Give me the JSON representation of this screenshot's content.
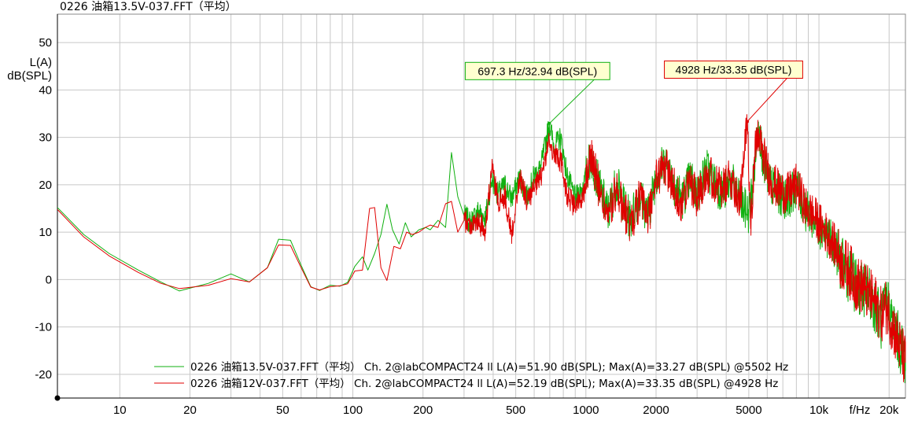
{
  "title": "0226 油箱13.5V-037.FFT（平均）",
  "colors": {
    "background": "#ffffff",
    "grid": "#c8c8c8",
    "axis": "#000000",
    "green": "#10b010",
    "red": "#e00000",
    "green_annot_bg": "#ffffd0",
    "red_annot_bg": "#ffffd0"
  },
  "chart_data": {
    "type": "line",
    "title": "0226 油箱13.5V-037.FFT（平均）",
    "xlabel": "f/Hz",
    "ylabel": [
      "L(A)",
      "dB(SPL)"
    ],
    "xscale": "log",
    "xlim": [
      5.4,
      23500
    ],
    "ylim": [
      -25,
      56
    ],
    "x_ticks": [
      {
        "value": 10,
        "label": "10"
      },
      {
        "value": 20,
        "label": "20"
      },
      {
        "value": 50,
        "label": "50"
      },
      {
        "value": 100,
        "label": "100"
      },
      {
        "value": 200,
        "label": "200"
      },
      {
        "value": 500,
        "label": "500"
      },
      {
        "value": 1000,
        "label": "1000"
      },
      {
        "value": 2000,
        "label": "2000"
      },
      {
        "value": 5000,
        "label": "5000"
      },
      {
        "value": 10000,
        "label": "10k"
      },
      {
        "value": 20000,
        "label": "20k"
      }
    ],
    "y_ticks": [
      {
        "value": 50,
        "label": "50"
      },
      {
        "value": 40,
        "label": "40"
      },
      {
        "value": 30,
        "label": "30"
      },
      {
        "value": 20,
        "label": "20"
      },
      {
        "value": 10,
        "label": "10"
      },
      {
        "value": 0,
        "label": "0"
      },
      {
        "value": -10,
        "label": "-10"
      },
      {
        "value": -20,
        "label": "-20"
      }
    ],
    "x_minor_ticks": [
      30,
      40,
      60,
      70,
      80,
      90,
      300,
      400,
      600,
      700,
      800,
      900,
      3000,
      4000,
      6000,
      7000,
      8000,
      9000
    ],
    "grid": true,
    "legend_position": "bottom-right",
    "series": [
      {
        "name": "0226 油箱13.5V-037.FFT（平均） Ch. 2@labCOMPACT24 ll L(A)=51.90 dB(SPL); Max(A)=33.27 dB(SPL) @5502 Hz",
        "color": "#10b010",
        "points": [
          [
            5.4,
            15.2
          ],
          [
            7.0,
            9.5
          ],
          [
            9.0,
            5.5
          ],
          [
            12,
            2.0
          ],
          [
            15,
            -0.5
          ],
          [
            18,
            -2.4
          ],
          [
            24,
            -0.8
          ],
          [
            30,
            1.2
          ],
          [
            36,
            -0.5
          ],
          [
            43,
            2.5
          ],
          [
            48,
            8.5
          ],
          [
            54,
            8.3
          ],
          [
            60,
            3.0
          ],
          [
            66,
            -1.5
          ],
          [
            72,
            -2.3
          ],
          [
            80,
            -1.2
          ],
          [
            88,
            -1.4
          ],
          [
            95,
            -0.6
          ],
          [
            102,
            2.8
          ],
          [
            110,
            4.8
          ],
          [
            116,
            2.0
          ],
          [
            124,
            5.5
          ],
          [
            132,
            9.5
          ],
          [
            140,
            15.9
          ],
          [
            148,
            10.5
          ],
          [
            158,
            7.5
          ],
          [
            168,
            12.0
          ],
          [
            178,
            9.0
          ],
          [
            192,
            10.5
          ],
          [
            205,
            11.0
          ],
          [
            215,
            10.5
          ],
          [
            232,
            12.5
          ],
          [
            250,
            11.0
          ],
          [
            265,
            26.8
          ],
          [
            282,
            17.5
          ],
          [
            300,
            13.5
          ],
          [
            320,
            12.0
          ],
          [
            345,
            14.5
          ],
          [
            370,
            13.0
          ],
          [
            395,
            21.0
          ],
          [
            420,
            18.0
          ],
          [
            450,
            20.0
          ],
          [
            480,
            17.0
          ],
          [
            520,
            21.5
          ],
          [
            560,
            17.5
          ],
          [
            600,
            22.0
          ],
          [
            640,
            23.5
          ],
          [
            697.3,
            32.94
          ],
          [
            730,
            28.0
          ],
          [
            780,
            30.0
          ],
          [
            830,
            22.0
          ],
          [
            900,
            17.0
          ],
          [
            980,
            20.0
          ],
          [
            1050,
            26.0
          ],
          [
            1150,
            19.0
          ],
          [
            1250,
            14.0
          ],
          [
            1350,
            20.5
          ],
          [
            1450,
            16.0
          ],
          [
            1550,
            12.5
          ],
          [
            1700,
            18.0
          ],
          [
            1850,
            13.5
          ],
          [
            2000,
            22.0
          ],
          [
            2200,
            25.0
          ],
          [
            2400,
            20.0
          ],
          [
            2600,
            17.0
          ],
          [
            2800,
            21.5
          ],
          [
            3000,
            18.0
          ],
          [
            3300,
            23.5
          ],
          [
            3600,
            20.0
          ],
          [
            3900,
            18.5
          ],
          [
            4200,
            21.0
          ],
          [
            4600,
            16.0
          ],
          [
            5000,
            14.0
          ],
          [
            5200,
            20.0
          ],
          [
            5502,
            33.27
          ],
          [
            5800,
            24.0
          ],
          [
            6200,
            20.0
          ],
          [
            6700,
            18.0
          ],
          [
            7300,
            17.0
          ],
          [
            8000,
            19.5
          ],
          [
            8800,
            14.5
          ],
          [
            9500,
            12.5
          ],
          [
            10500,
            10.0
          ],
          [
            11500,
            7.5
          ],
          [
            12500,
            3.0
          ],
          [
            13500,
            1.0
          ],
          [
            14500,
            -1.5
          ],
          [
            15500,
            -2.0
          ],
          [
            16500,
            -3.0
          ],
          [
            17500,
            -5.5
          ],
          [
            18500,
            -9.0
          ],
          [
            19500,
            -4.5
          ],
          [
            20500,
            -8.0
          ],
          [
            21500,
            -11.5
          ],
          [
            22500,
            -14.5
          ],
          [
            23500,
            -16.5
          ]
        ]
      },
      {
        "name": "0226 油箱12V-037.FFT（平均） Ch. 2@labCOMPACT24 ll L(A)=52.19 dB(SPL); Max(A)=33.35 dB(SPL) @4928 Hz",
        "color": "#e00000",
        "points": [
          [
            5.4,
            14.8
          ],
          [
            7.0,
            9.0
          ],
          [
            9.0,
            5.0
          ],
          [
            12,
            1.5
          ],
          [
            15,
            -0.8
          ],
          [
            18,
            -1.9
          ],
          [
            24,
            -1.2
          ],
          [
            30,
            0.2
          ],
          [
            36,
            -0.5
          ],
          [
            43,
            2.5
          ],
          [
            48,
            7.3
          ],
          [
            54,
            7.2
          ],
          [
            60,
            2.5
          ],
          [
            66,
            -1.6
          ],
          [
            72,
            -2.2
          ],
          [
            80,
            -1.5
          ],
          [
            88,
            -1.3
          ],
          [
            95,
            -0.9
          ],
          [
            102,
            1.8
          ],
          [
            110,
            2.0
          ],
          [
            118,
            15.0
          ],
          [
            124,
            15.2
          ],
          [
            132,
            2.5
          ],
          [
            140,
            -0.2
          ],
          [
            150,
            7.0
          ],
          [
            160,
            6.5
          ],
          [
            170,
            10.0
          ],
          [
            180,
            9.5
          ],
          [
            192,
            10.0
          ],
          [
            205,
            11.0
          ],
          [
            215,
            11.5
          ],
          [
            232,
            11.0
          ],
          [
            250,
            16.0
          ],
          [
            265,
            16.5
          ],
          [
            282,
            10.0
          ],
          [
            300,
            12.5
          ],
          [
            320,
            11.5
          ],
          [
            345,
            12.0
          ],
          [
            370,
            10.5
          ],
          [
            395,
            23.5
          ],
          [
            420,
            16.5
          ],
          [
            450,
            17.5
          ],
          [
            480,
            9.5
          ],
          [
            520,
            21.5
          ],
          [
            560,
            16.5
          ],
          [
            600,
            19.0
          ],
          [
            640,
            21.5
          ],
          [
            697.3,
            29.2
          ],
          [
            730,
            26.5
          ],
          [
            780,
            25.0
          ],
          [
            830,
            18.0
          ],
          [
            900,
            15.0
          ],
          [
            980,
            18.5
          ],
          [
            1050,
            27.0
          ],
          [
            1150,
            18.0
          ],
          [
            1250,
            13.0
          ],
          [
            1350,
            19.0
          ],
          [
            1450,
            15.0
          ],
          [
            1550,
            11.5
          ],
          [
            1700,
            17.0
          ],
          [
            1850,
            13.0
          ],
          [
            2000,
            21.0
          ],
          [
            2200,
            24.0
          ],
          [
            2400,
            19.0
          ],
          [
            2600,
            16.0
          ],
          [
            2800,
            21.0
          ],
          [
            3000,
            17.5
          ],
          [
            3300,
            23.0
          ],
          [
            3600,
            20.0
          ],
          [
            3900,
            19.0
          ],
          [
            4200,
            21.5
          ],
          [
            4600,
            16.5
          ],
          [
            4928,
            33.35
          ],
          [
            5100,
            13.0
          ],
          [
            5400,
            31.0
          ],
          [
            5800,
            26.0
          ],
          [
            6200,
            21.0
          ],
          [
            6700,
            19.0
          ],
          [
            7300,
            18.0
          ],
          [
            8000,
            20.0
          ],
          [
            8800,
            15.0
          ],
          [
            9500,
            13.5
          ],
          [
            10500,
            10.5
          ],
          [
            11500,
            8.0
          ],
          [
            12500,
            3.5
          ],
          [
            13500,
            2.0
          ],
          [
            14500,
            -1.0
          ],
          [
            15500,
            -1.5
          ],
          [
            16500,
            -3.5
          ],
          [
            17500,
            -5.0
          ],
          [
            18500,
            -7.5
          ],
          [
            19500,
            -5.5
          ],
          [
            20500,
            -9.0
          ],
          [
            21500,
            -12.0
          ],
          [
            22500,
            -15.0
          ],
          [
            23500,
            -17.5
          ]
        ]
      }
    ],
    "annotations": [
      {
        "text": "697.3 Hz/32.94 dB(SPL)",
        "series": 0,
        "x": 697.3,
        "y": 32.94,
        "label_x": 620,
        "label_y": 44,
        "color": "#10b010"
      },
      {
        "text": "4928 Hz/33.35 dB(SPL)",
        "series": 1,
        "x": 4928,
        "y": 33.35,
        "label_x": 4300,
        "label_y": 44.3,
        "color": "#e00000"
      }
    ],
    "legend": [
      {
        "label": "0226 油箱13.5V-037.FFT（平均）  Ch. 2@labCOMPACT24 ll L(A)=51.90 dB(SPL); Max(A)=33.27 dB(SPL) @5502 Hz",
        "color": "#10b010"
      },
      {
        "label": "0226 油箱12V-037.FFT（平均）  Ch. 2@labCOMPACT24 ll L(A)=52.19 dB(SPL); Max(A)=33.35 dB(SPL) @4928 Hz",
        "color": "#e00000"
      }
    ]
  }
}
